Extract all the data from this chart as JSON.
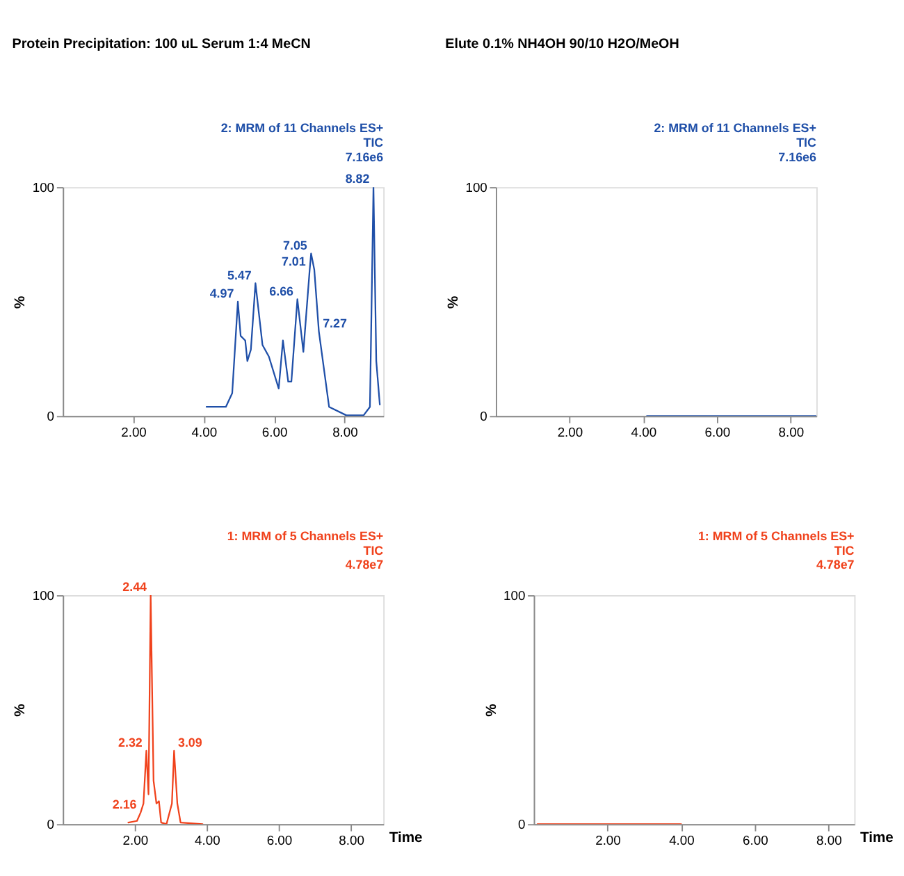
{
  "chart_data": [
    {
      "type": "line",
      "title": "Protein Precipitation: 100 uL Serum 1:4 MeCN",
      "ylabel": "%",
      "xlim": [
        0,
        9.1
      ],
      "ylim": [
        0,
        100
      ],
      "xticks": [
        {
          "value": 2,
          "label": "2.00"
        },
        {
          "value": 4,
          "label": "4.00"
        },
        {
          "value": 6,
          "label": "6.00"
        },
        {
          "value": 8,
          "label": "8.00"
        }
      ],
      "yticks": [
        0,
        100
      ],
      "grid": false,
      "marker": "none",
      "line_style": "solid",
      "series": [
        {
          "color": "#1f4fa8",
          "x": [
            4.08,
            4.63,
            4.81,
            4.97,
            5.05,
            5.18,
            5.24,
            5.34,
            5.47,
            5.67,
            5.85,
            6.13,
            6.25,
            6.4,
            6.49,
            6.66,
            6.83,
            7.01,
            7.05,
            7.14,
            7.27,
            7.56,
            8.05,
            8.54,
            8.72,
            8.82,
            8.9,
            9.0
          ],
          "values": [
            4,
            4,
            10,
            50,
            35,
            33,
            24,
            29,
            58,
            31,
            26,
            12,
            33,
            15,
            15,
            51,
            28,
            64,
            71,
            64,
            37,
            4,
            0.3,
            0.3,
            4,
            100,
            24,
            5
          ]
        }
      ],
      "annotations": [
        "2: MRM of 11 Channels ES+",
        "TIC",
        "7.16e6",
        {
          "text": "4.97",
          "x": 4.97,
          "y": 50
        },
        {
          "text": "5.47",
          "x": 5.47,
          "y": 58
        },
        {
          "text": "6.66",
          "x": 6.66,
          "y": 51
        },
        {
          "text": "7.01",
          "x": 7.01,
          "y": 64
        },
        {
          "text": "7.05",
          "x": 7.05,
          "y": 71
        },
        {
          "text": "7.27",
          "x": 7.27,
          "y": 37
        },
        {
          "text": "8.82",
          "x": 8.82,
          "y": 100
        }
      ]
    },
    {
      "type": "line",
      "title": "Elute 0.1% NH4OH 90/10 H2O/MeOH",
      "ylabel": "%",
      "xlim": [
        0,
        8.7
      ],
      "ylim": [
        0,
        100
      ],
      "xticks": [
        {
          "value": 2,
          "label": "2.00"
        },
        {
          "value": 4,
          "label": "4.00"
        },
        {
          "value": 6,
          "label": "6.00"
        },
        {
          "value": 8,
          "label": "8.00"
        }
      ],
      "yticks": [
        0,
        100
      ],
      "grid": false,
      "marker": "none",
      "line_style": "solid",
      "series": [
        {
          "color": "#1f4fa8",
          "x": [
            4.1,
            6.0,
            8.7
          ],
          "values": [
            0,
            0,
            0
          ]
        }
      ],
      "annotations": [
        "2: MRM of 11 Channels ES+",
        "TIC",
        "7.16e6"
      ]
    },
    {
      "type": "line",
      "xlabel": "Time",
      "ylabel": "%",
      "xlim": [
        0,
        8.9
      ],
      "ylim": [
        0,
        100
      ],
      "xticks": [
        {
          "value": 2,
          "label": "2.00"
        },
        {
          "value": 4,
          "label": "4.00"
        },
        {
          "value": 6,
          "label": "6.00"
        },
        {
          "value": 8,
          "label": "8.00"
        }
      ],
      "yticks": [
        0,
        100
      ],
      "grid": false,
      "marker": "none",
      "line_style": "solid",
      "series": [
        {
          "color": "#f0421c",
          "x": [
            1.82,
            2.06,
            2.16,
            2.24,
            2.32,
            2.38,
            2.44,
            2.52,
            2.6,
            2.67,
            2.73,
            2.88,
            3.03,
            3.09,
            3.18,
            3.27,
            3.88
          ],
          "values": [
            0.7,
            1.4,
            5,
            9,
            32,
            13,
            100,
            19,
            9,
            10,
            0.7,
            0,
            9,
            32,
            9,
            0.7,
            0
          ]
        }
      ],
      "annotations": [
        "1: MRM of 5 Channels ES+",
        "TIC",
        "4.78e7",
        {
          "text": "2.16",
          "x": 2.16,
          "y": 5
        },
        {
          "text": "2.32",
          "x": 2.32,
          "y": 32
        },
        {
          "text": "2.44",
          "x": 2.44,
          "y": 100
        },
        {
          "text": "3.09",
          "x": 3.09,
          "y": 32
        }
      ]
    },
    {
      "type": "line",
      "xlabel": "Time",
      "ylabel": "%",
      "xlim": [
        0,
        8.7
      ],
      "ylim": [
        0,
        100
      ],
      "xticks": [
        {
          "value": 2,
          "label": "2.00"
        },
        {
          "value": 4,
          "label": "4.00"
        },
        {
          "value": 6,
          "label": "6.00"
        },
        {
          "value": 8,
          "label": "8.00"
        }
      ],
      "yticks": [
        0,
        100
      ],
      "grid": false,
      "marker": "none",
      "line_style": "solid",
      "series": [
        {
          "color": "#f0421c",
          "x": [
            0.1,
            2.0,
            4.0
          ],
          "values": [
            0,
            0,
            0
          ]
        }
      ],
      "annotations": [
        "1: MRM of 5 Channels ES+",
        "TIC",
        "4.78e7"
      ]
    }
  ]
}
